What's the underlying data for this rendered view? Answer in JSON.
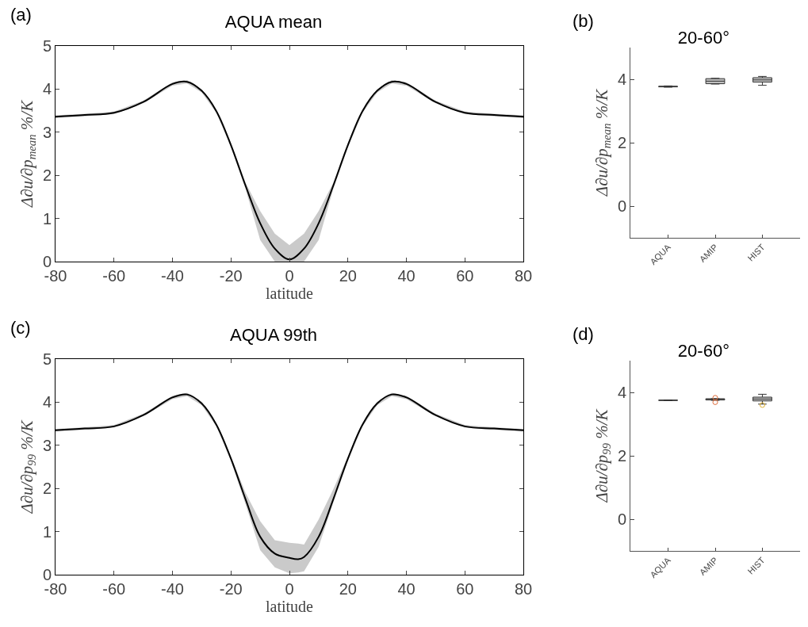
{
  "chart_data": [
    {
      "type": "line",
      "title": "AQUA mean",
      "xlabel": "latitude",
      "ylabel": "Δ∂u/∂p$_{mean}$ %/K",
      "annotations": [
        "(a)"
      ],
      "x": [
        -80,
        -70,
        -60,
        -50,
        -40,
        -35,
        -30,
        -25,
        -20,
        -15,
        -10,
        -5,
        0,
        5,
        10,
        15,
        20,
        25,
        30,
        35,
        40,
        50,
        60,
        70,
        80
      ],
      "series": [
        {
          "color": "#000000",
          "values": [
            3.36,
            3.4,
            3.45,
            3.7,
            4.12,
            4.17,
            3.96,
            3.49,
            2.7,
            1.76,
            0.89,
            0.3,
            0.05,
            0.3,
            0.89,
            1.76,
            2.7,
            3.49,
            3.96,
            4.17,
            4.12,
            3.7,
            3.45,
            3.4,
            3.36
          ],
          "lower": [
            3.33,
            3.37,
            3.42,
            3.67,
            4.08,
            4.13,
            3.92,
            3.45,
            2.65,
            1.68,
            0.5,
            0,
            0,
            0,
            0.5,
            1.68,
            2.65,
            3.45,
            3.92,
            4.13,
            4.08,
            3.67,
            3.42,
            3.37,
            3.33
          ],
          "upper": [
            3.39,
            3.43,
            3.48,
            3.73,
            4.16,
            4.21,
            4.0,
            3.53,
            2.75,
            1.83,
            1.17,
            0.65,
            0.38,
            0.65,
            1.17,
            1.83,
            2.75,
            3.53,
            4.0,
            4.21,
            4.16,
            3.73,
            3.48,
            3.43,
            3.39
          ]
        }
      ],
      "xlim": [
        -80,
        80
      ],
      "xticks": [
        -80,
        -60,
        -40,
        -20,
        0,
        20,
        40,
        60,
        80
      ],
      "ylim": [
        0,
        5
      ],
      "yticks": [
        0,
        1,
        2,
        3,
        4,
        5
      ],
      "grid": false,
      "line_style": "solid",
      "marker": "none"
    },
    {
      "type": "box",
      "title": "20-60°",
      "ylabel": "Δ∂u/∂p$_{mean}$ %/K",
      "annotations": [
        "(b)"
      ],
      "categories": [
        "AQUA",
        "AMIP",
        "HIST"
      ],
      "series": [
        {
          "color": "#bfbfbf",
          "boxes": [
            {
              "low": 3.75,
              "q1": 3.76,
              "median": 3.77,
              "q3": 3.78,
              "high": 3.79
            },
            {
              "low": 3.85,
              "q1": 3.86,
              "median": 3.94,
              "q3": 4.02,
              "high": 4.03
            },
            {
              "low": 3.81,
              "q1": 3.91,
              "median": 3.98,
              "q3": 4.05,
              "high": 4.09
            }
          ]
        }
      ],
      "ylim": [
        -1,
        5
      ],
      "yticks": [
        0,
        2,
        4
      ],
      "grid": false
    },
    {
      "type": "line",
      "title": "AQUA 99th",
      "xlabel": "latitude",
      "ylabel": "Δ∂u/∂p$_{99}$ %/K",
      "annotations": [
        "(c)"
      ],
      "x": [
        -80,
        -70,
        -60,
        -50,
        -40,
        -35,
        -30,
        -25,
        -20,
        -15,
        -10,
        -5,
        0,
        3,
        5,
        10,
        15,
        20,
        25,
        30,
        35,
        40,
        50,
        60,
        70,
        80
      ],
      "series": [
        {
          "color": "#000000",
          "values": [
            3.35,
            3.39,
            3.44,
            3.7,
            4.11,
            4.18,
            3.97,
            3.48,
            2.69,
            1.75,
            0.88,
            0.49,
            0.39,
            0.36,
            0.41,
            0.88,
            1.75,
            2.69,
            3.48,
            3.97,
            4.18,
            4.11,
            3.7,
            3.44,
            3.39,
            3.35
          ],
          "lower": [
            3.32,
            3.36,
            3.41,
            3.67,
            4.07,
            4.14,
            3.93,
            3.44,
            2.64,
            1.63,
            0.57,
            0.17,
            0.03,
            0.05,
            0.08,
            0.65,
            1.67,
            2.64,
            3.44,
            3.93,
            4.14,
            4.07,
            3.67,
            3.41,
            3.36,
            3.32
          ],
          "upper": [
            3.38,
            3.42,
            3.47,
            3.73,
            4.15,
            4.22,
            4.01,
            3.52,
            2.74,
            1.9,
            1.24,
            0.8,
            0.74,
            0.72,
            0.7,
            1.28,
            1.98,
            2.74,
            3.52,
            4.01,
            4.22,
            4.15,
            3.73,
            3.47,
            3.42,
            3.38
          ]
        }
      ],
      "xlim": [
        -80,
        80
      ],
      "xticks": [
        -80,
        -60,
        -40,
        -20,
        0,
        20,
        40,
        60,
        80
      ],
      "ylim": [
        0,
        5
      ],
      "yticks": [
        0,
        1,
        2,
        3,
        4,
        5
      ],
      "grid": false,
      "line_style": "solid",
      "marker": "none"
    },
    {
      "type": "box",
      "title": "20-60°",
      "ylabel": "Δ∂u/∂p$_{99}$ %/K",
      "annotations": [
        "(d)"
      ],
      "categories": [
        "AQUA",
        "AMIP",
        "HIST"
      ],
      "series": [
        {
          "color": "#bfbfbf",
          "boxes": [
            {
              "low": 3.74,
              "q1": 3.745,
              "median": 3.75,
              "q3": 3.755,
              "high": 3.76
            },
            {
              "low": 3.75,
              "q1": 3.76,
              "median": 3.78,
              "q3": 3.8,
              "high": 3.8
            },
            {
              "low": 3.63,
              "q1": 3.73,
              "median": 3.79,
              "q3": 3.85,
              "high": 3.94
            }
          ]
        },
        {
          "type": "scatter",
          "color": "#e07040",
          "x": [
            "AMIP",
            "AMIP"
          ],
          "values": [
            3.83,
            3.69
          ]
        },
        {
          "type": "scatter",
          "color": "#e0b030",
          "x": [
            "HIST"
          ],
          "values": [
            3.6
          ]
        }
      ],
      "ylim": [
        -1,
        5
      ],
      "yticks": [
        0,
        2,
        4
      ],
      "grid": false
    }
  ]
}
